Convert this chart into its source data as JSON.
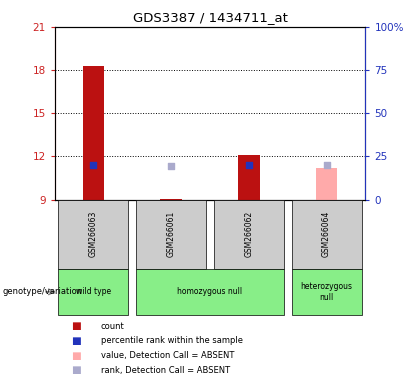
{
  "title": "GDS3387 / 1434711_at",
  "samples": [
    "GSM266063",
    "GSM266061",
    "GSM266062",
    "GSM266064"
  ],
  "bar_values": [
    18.3,
    null,
    12.1,
    null
  ],
  "bar_absent_values": [
    null,
    null,
    null,
    11.2
  ],
  "bar_tiny": [
    null,
    9.05,
    null,
    null
  ],
  "rank_present": [
    20.2,
    null,
    20.2,
    null
  ],
  "rank_absent": [
    null,
    19.5,
    null,
    19.8
  ],
  "ylim_left": [
    9,
    21
  ],
  "ylim_right": [
    0,
    100
  ],
  "yticks_left": [
    9,
    12,
    15,
    18,
    21
  ],
  "yticks_right": [
    0,
    25,
    50,
    75,
    100
  ],
  "ytick_right_labels": [
    "0",
    "25",
    "50",
    "75",
    "100%"
  ],
  "bar_color_present": "#bb1111",
  "bar_color_absent": "#ffaaaa",
  "rank_color_present": "#2233bb",
  "rank_color_absent": "#aaaacc",
  "bar_width": 0.28,
  "x_positions": [
    1,
    2,
    3,
    4
  ],
  "legend_items": [
    {
      "color": "#bb1111",
      "label": "count"
    },
    {
      "color": "#2233bb",
      "label": "percentile rank within the sample"
    },
    {
      "color": "#ffaaaa",
      "label": "value, Detection Call = ABSENT"
    },
    {
      "color": "#aaaacc",
      "label": "rank, Detection Call = ABSENT"
    }
  ],
  "axis_label_left_color": "#cc2222",
  "axis_label_right_color": "#2233bb",
  "sample_label_area_color": "#cccccc",
  "genotype_color": "#88ee88"
}
